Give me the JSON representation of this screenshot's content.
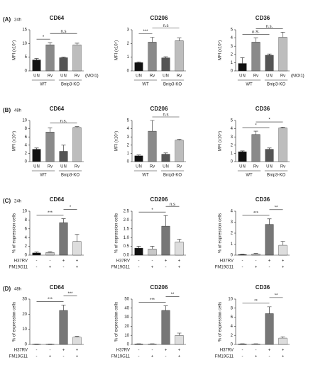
{
  "chart_data": [
    {
      "type": "bar",
      "panel": "(A)",
      "time": "24h",
      "title": "CD64",
      "ylabel": "MFI (x10⁴)",
      "categories": [
        "UN",
        "Rv",
        "UN",
        "Rv"
      ],
      "moi": "(MOI1)",
      "groups": [
        "WT",
        "Bnip3-KO"
      ],
      "values": [
        4,
        9.5,
        4.8,
        9.5
      ],
      "errors": [
        0.5,
        0.8,
        0.2,
        0.6
      ],
      "colors": [
        "#111111",
        "#8a8a8a",
        "#555555",
        "#bdbdbd"
      ],
      "ylim": [
        0,
        15
      ],
      "yticks": [
        0,
        5,
        10,
        15
      ],
      "significance": [
        {
          "label": "*",
          "from": 0,
          "to": 1
        },
        {
          "label": "n.s",
          "from": 1,
          "to": 3
        }
      ]
    },
    {
      "type": "bar",
      "title": "CD206",
      "ylabel": "MFI (x10⁴)",
      "categories": [
        "UN",
        "Rv",
        "UN",
        "Rv"
      ],
      "groups": [
        "WT",
        "Bnip3-KO"
      ],
      "values": [
        0.6,
        2.1,
        0.95,
        2.2
      ],
      "errors": [
        0.05,
        0.35,
        0.08,
        0.2
      ],
      "colors": [
        "#111111",
        "#8a8a8a",
        "#555555",
        "#bdbdbd"
      ],
      "ylim": [
        0,
        3
      ],
      "yticks": [
        0,
        1,
        2,
        3
      ],
      "significance": [
        {
          "label": "***",
          "from": 0,
          "to": 1
        },
        {
          "label": "n.s",
          "from": 1,
          "to": 3
        }
      ]
    },
    {
      "type": "bar",
      "title": "CD36",
      "ylabel": "MFI (x10⁴)",
      "categories": [
        "UN",
        "Rv",
        "UN",
        "Rv"
      ],
      "moi": "(MOI1)",
      "groups": [
        "WT",
        "Bnip3-KO"
      ],
      "values": [
        0.9,
        3.5,
        1.9,
        4.1
      ],
      "errors": [
        0.7,
        0.5,
        0.15,
        0.6
      ],
      "colors": [
        "#111111",
        "#8a8a8a",
        "#555555",
        "#bdbdbd"
      ],
      "ylim": [
        0,
        5
      ],
      "yticks": [
        0,
        1,
        2,
        3,
        4,
        5
      ],
      "significance": [
        {
          "label": "n.S.",
          "from": 0,
          "to": 2
        },
        {
          "label": "n.s.",
          "from": 1,
          "to": 3
        }
      ]
    },
    {
      "type": "bar",
      "panel": "(B)",
      "time": "48h",
      "title": "CD64",
      "ylabel": "MFI (x10⁴)",
      "categories": [
        "UN",
        "Rv",
        "UN",
        "Rv"
      ],
      "groups": [
        "WT",
        "Bnip3-KO"
      ],
      "values": [
        3,
        7.2,
        2.5,
        8.3
      ],
      "errors": [
        0.3,
        1.0,
        1.5,
        0.2
      ],
      "colors": [
        "#111111",
        "#8a8a8a",
        "#555555",
        "#bdbdbd"
      ],
      "ylim": [
        0,
        10
      ],
      "yticks": [
        0,
        2,
        4,
        6,
        8,
        10
      ],
      "significance": [
        {
          "label": "n.s.",
          "from": 1,
          "to": 3
        }
      ]
    },
    {
      "type": "bar",
      "title": "CD206",
      "ylabel": "MFI (x10⁴)",
      "categories": [
        "UN",
        "Rv",
        "UN",
        "Rv"
      ],
      "groups": [
        "WT",
        "Bnip3-KO"
      ],
      "values": [
        0.7,
        3.7,
        0.9,
        2.6
      ],
      "errors": [
        0.1,
        1.3,
        0.15,
        0.1
      ],
      "colors": [
        "#111111",
        "#8a8a8a",
        "#555555",
        "#bdbdbd"
      ],
      "ylim": [
        0,
        5
      ],
      "yticks": [
        0,
        1,
        2,
        3,
        4,
        5
      ],
      "significance": [
        {
          "label": "n.s",
          "from": 1,
          "to": 3
        }
      ]
    },
    {
      "type": "bar",
      "title": "CD36",
      "ylabel": "MFI (x10⁴)",
      "categories": [
        "UN",
        "Rv",
        "UN",
        "Rv"
      ],
      "groups": [
        "WT",
        "Bnip3-KO"
      ],
      "values": [
        1.2,
        3.3,
        1.5,
        4.1
      ],
      "errors": [
        0.1,
        0.4,
        0.15,
        0.1
      ],
      "colors": [
        "#111111",
        "#8a8a8a",
        "#555555",
        "#bdbdbd"
      ],
      "ylim": [
        0,
        5
      ],
      "yticks": [
        0,
        1,
        2,
        3,
        4,
        5
      ],
      "significance": [
        {
          "label": "*",
          "from": 0,
          "to": 2
        },
        {
          "label": "*",
          "from": 1,
          "to": 3
        }
      ]
    },
    {
      "type": "bar",
      "panel": "(C)",
      "time": "24h",
      "title": "CD64",
      "ylabel": "% of expression cells",
      "conditions": [
        {
          "name": "H37RV",
          "values": [
            "-",
            "-",
            "+",
            "+"
          ]
        },
        {
          "name": "FM19G11",
          "values": [
            "-",
            "+",
            "-",
            "+"
          ]
        }
      ],
      "values": [
        0.5,
        0.6,
        7.4,
        3.1
      ],
      "errors": [
        0.2,
        0.2,
        0.9,
        1.6
      ],
      "colors": [
        "#111111",
        "#c8c8c8",
        "#777777",
        "#dddddd"
      ],
      "ylim": [
        0,
        10
      ],
      "yticks": [
        0,
        2,
        4,
        6,
        8,
        10
      ],
      "significance": [
        {
          "label": "***",
          "from": 0,
          "to": 2
        },
        {
          "label": "*",
          "from": 2,
          "to": 3
        }
      ]
    },
    {
      "type": "bar",
      "title": "CD206",
      "ylabel": "% of expression cells",
      "conditions": [
        {
          "name": "H37RV",
          "values": [
            "-",
            "-",
            "+",
            "+"
          ]
        },
        {
          "name": "FM19G11",
          "values": [
            "-",
            "+",
            "-",
            "+"
          ]
        }
      ],
      "values": [
        0.4,
        0.35,
        1.65,
        0.75
      ],
      "errors": [
        0.1,
        0.15,
        0.6,
        0.15
      ],
      "colors": [
        "#111111",
        "#c8c8c8",
        "#777777",
        "#dddddd"
      ],
      "ylim": [
        0,
        2.5
      ],
      "yticks": [
        {
          "value": 0,
          "label": "0.0"
        },
        0.5,
        {
          "value": 1,
          "label": "1.0"
        },
        1.5,
        {
          "value": 2,
          "label": "2.0"
        },
        2.5
      ],
      "significance": [
        {
          "label": "*",
          "from": 0,
          "to": 2
        },
        {
          "label": "n.s",
          "from": 2,
          "to": 3
        }
      ]
    },
    {
      "type": "bar",
      "title": "CD36",
      "ylabel": "% of expression cells",
      "conditions": [
        {
          "name": "H37RV",
          "values": [
            "-",
            "-",
            "+",
            "+"
          ]
        },
        {
          "name": "FM19G11",
          "values": [
            "-",
            "+",
            "-",
            "+"
          ]
        }
      ],
      "values": [
        0.05,
        0.1,
        2.8,
        0.9
      ],
      "errors": [
        0.03,
        0.05,
        0.5,
        0.35
      ],
      "colors": [
        "#111111",
        "#c8c8c8",
        "#777777",
        "#dddddd"
      ],
      "ylim": [
        0,
        4
      ],
      "yticks": [
        0,
        1,
        2,
        3,
        4
      ],
      "significance": [
        {
          "label": "***",
          "from": 0,
          "to": 2
        },
        {
          "label": "**",
          "from": 2,
          "to": 3
        }
      ]
    },
    {
      "type": "bar",
      "panel": "(D)",
      "time": "48h",
      "title": "CD64",
      "ylabel": "% of expression cells",
      "conditions": [
        {
          "name": "H37RV",
          "values": [
            "-",
            "-",
            "+",
            "+"
          ]
        },
        {
          "name": "FM19G11",
          "values": [
            "-",
            "+",
            "-",
            "+"
          ]
        }
      ],
      "values": [
        0.2,
        0.2,
        22.5,
        4.8
      ],
      "errors": [
        0.1,
        0.1,
        3.5,
        0.5
      ],
      "colors": [
        "#111111",
        "#c8c8c8",
        "#777777",
        "#dddddd"
      ],
      "ylim": [
        0,
        30
      ],
      "yticks": [
        0,
        10,
        20,
        30
      ],
      "significance": [
        {
          "label": "***",
          "from": 0,
          "to": 2
        },
        {
          "label": "***",
          "from": 2,
          "to": 3
        }
      ]
    },
    {
      "type": "bar",
      "title": "CD206",
      "ylabel": "% of expression cells",
      "conditions": [
        {
          "name": "H37RV",
          "values": [
            "-",
            "-",
            "+",
            "+"
          ]
        },
        {
          "name": "FM19G11",
          "values": [
            "-",
            "+",
            "-",
            "+"
          ]
        }
      ],
      "values": [
        0.5,
        0.5,
        37.5,
        10
      ],
      "errors": [
        0.2,
        0.2,
        5,
        2.5
      ],
      "colors": [
        "#111111",
        "#c8c8c8",
        "#777777",
        "#dddddd"
      ],
      "ylim": [
        0,
        50
      ],
      "yticks": [
        0,
        10,
        20,
        30,
        40,
        50
      ],
      "significance": [
        {
          "label": "***",
          "from": 0,
          "to": 2
        },
        {
          "label": "**",
          "from": 2,
          "to": 3
        }
      ]
    },
    {
      "type": "bar",
      "title": "CD36",
      "ylabel": "% of expression cells",
      "conditions": [
        {
          "name": "H37RV",
          "values": [
            "-",
            "-",
            "+",
            "+"
          ]
        },
        {
          "name": "FM19G11",
          "values": [
            "-",
            "+",
            "-",
            "+"
          ]
        }
      ],
      "values": [
        0.1,
        0.1,
        6.8,
        1.4
      ],
      "errors": [
        0.05,
        0.05,
        1.5,
        0.3
      ],
      "colors": [
        "#111111",
        "#c8c8c8",
        "#777777",
        "#dddddd"
      ],
      "ylim": [
        0,
        10
      ],
      "yticks": [
        0,
        2,
        4,
        6,
        8,
        10
      ],
      "significance": [
        {
          "label": "**",
          "from": 0,
          "to": 2
        },
        {
          "label": "**",
          "from": 2,
          "to": 3
        }
      ]
    }
  ]
}
